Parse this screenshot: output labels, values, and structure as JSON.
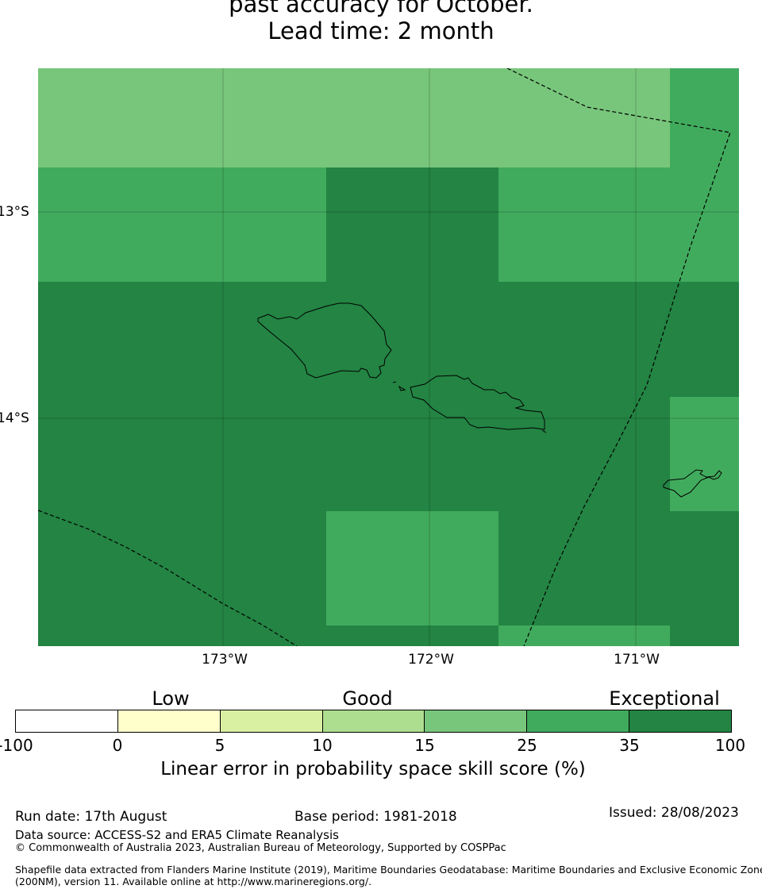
{
  "title": {
    "line1": "past accuracy for October.",
    "line2": "Lead time: 2 month"
  },
  "map": {
    "lat_labels": [
      "13°S",
      "14°S"
    ],
    "lon_labels": [
      "173°W",
      "172°W",
      "171°W"
    ],
    "skill_colors": {
      "class_15_25": "#78c67b",
      "class_25_35": "#41ab5d",
      "class_35_100": "#238443"
    }
  },
  "legend": {
    "category_labels": [
      "Low",
      "Good",
      "Exceptional"
    ],
    "tick_labels": [
      "-100",
      "0",
      "5",
      "10",
      "15",
      "25",
      "35",
      "100"
    ],
    "segment_colors": [
      "#ffffff",
      "#ffffcc",
      "#d9f0a3",
      "#addd8e",
      "#78c67b",
      "#41ab5d",
      "#238443"
    ],
    "caption": "Linear error in probability space skill score (%)"
  },
  "footer": {
    "run_date": "Run date: 17th August",
    "base_period": "Base period: 1981-2018",
    "issued": "Issued: 28/08/2023",
    "data_source": "Data source: ACCESS-S2 and ERA5 Climate Reanalysis",
    "copyright": "© Commonwealth of Australia 2023, Australian Bureau of Meteorology, Supported by COSPPac",
    "shapefile_line1": "Shapefile data extracted from Flanders Marine Institute (2019), Maritime Boundaries Geodatabase: Maritime Boundaries and Exclusive Economic Zones",
    "shapefile_line2": "(200NM), version 11. Available online at http://www.marineregions.org/."
  }
}
